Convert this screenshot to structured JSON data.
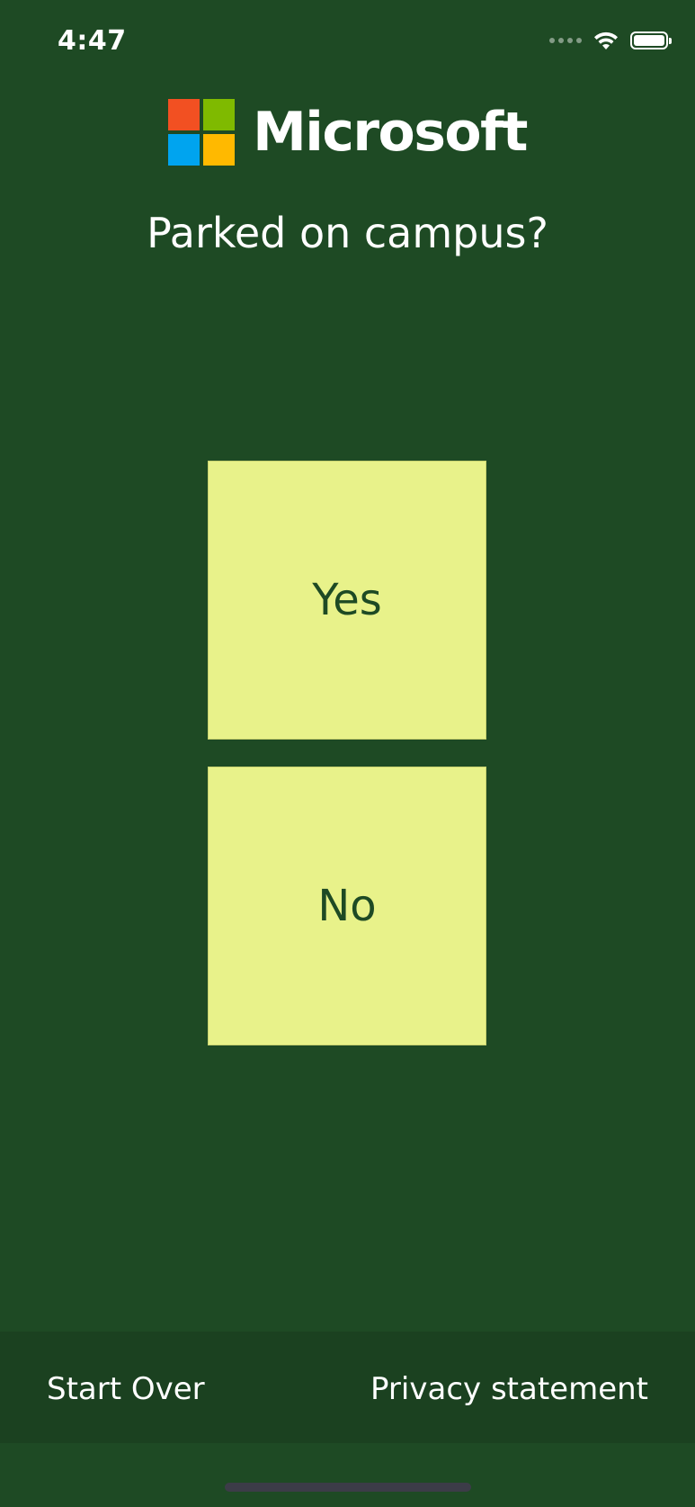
{
  "status_bar": {
    "time": "4:47",
    "icons": [
      "signal-icon",
      "wifi-icon",
      "battery-icon"
    ]
  },
  "header": {
    "logo_name": "microsoft-logo",
    "brand": "Microsoft",
    "logo_colors": [
      "#f25022",
      "#7fba00",
      "#00a4ef",
      "#ffb900"
    ]
  },
  "question": "Parked on campus?",
  "answers": {
    "yes_label": "Yes",
    "no_label": "No"
  },
  "footer": {
    "start_over": "Start Over",
    "privacy": "Privacy statement"
  },
  "colors": {
    "background": "#1e4a24",
    "button": "#e8f28a",
    "button_text": "#1e4a24"
  }
}
